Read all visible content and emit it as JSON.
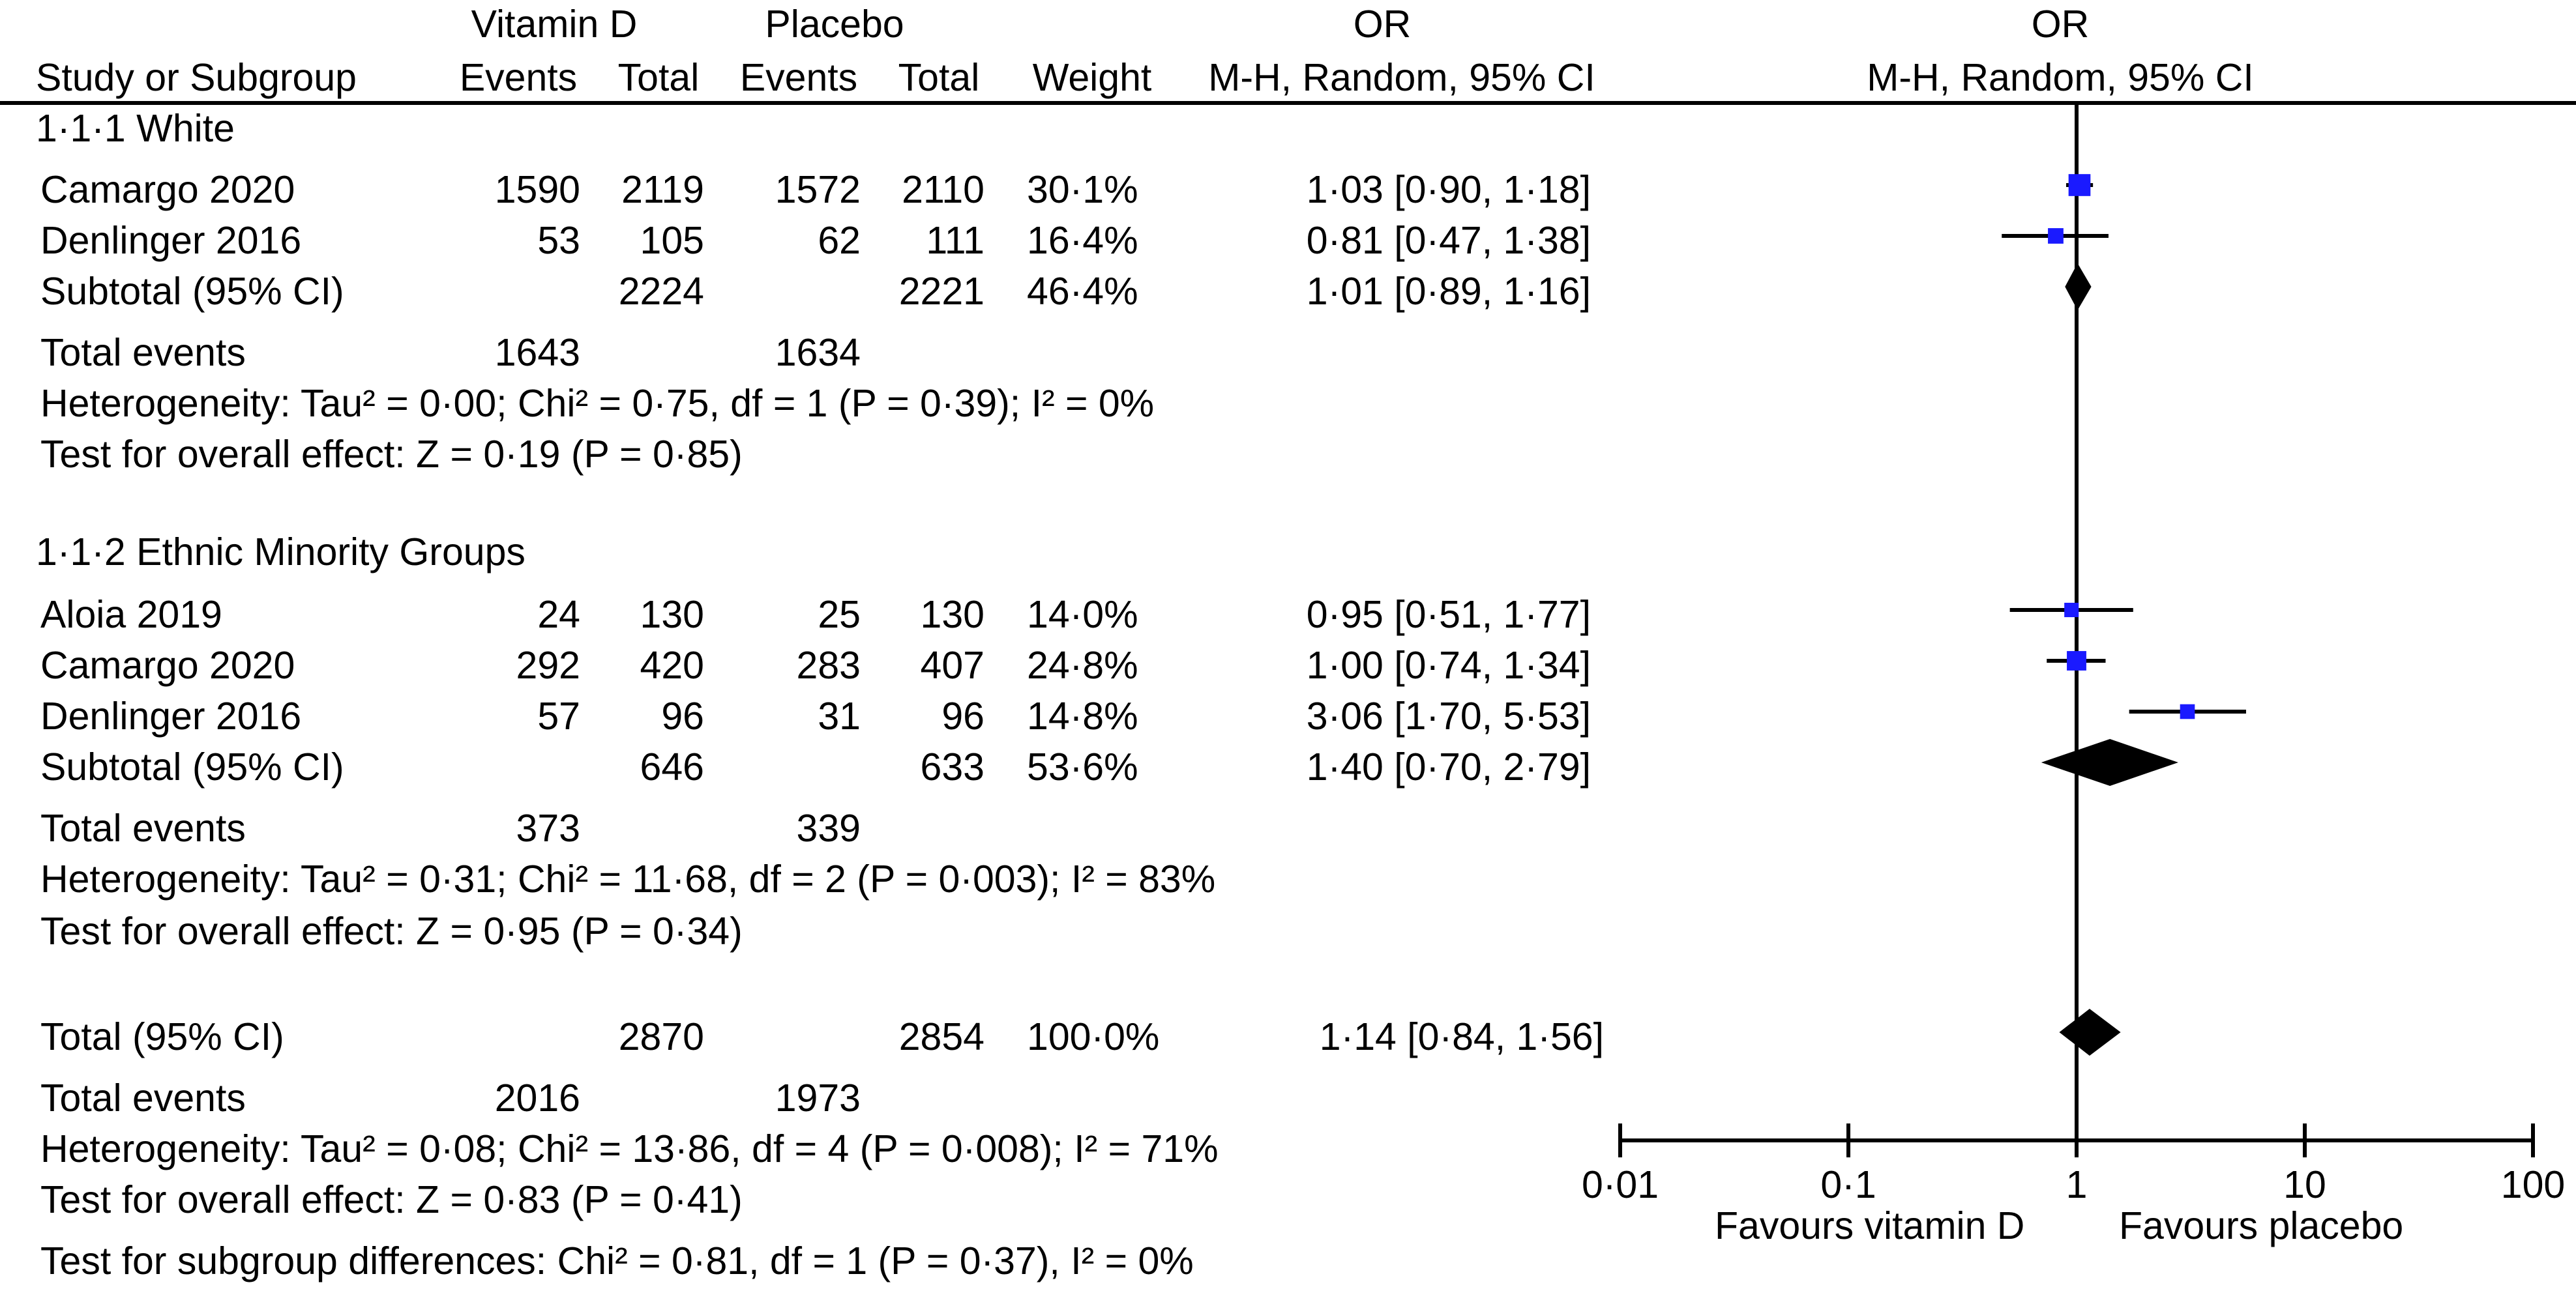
{
  "header": {
    "group1": "Vitamin D",
    "group2": "Placebo",
    "or_top": "OR",
    "or_plot_top": "OR",
    "study_col": "Study or Subgroup",
    "events1": "Events",
    "total1": "Total",
    "events2": "Events",
    "total2": "Total",
    "weight": "Weight",
    "or_method": "M-H, Random, 95% CI",
    "or_plot_method": "M-H, Random, 95% CI"
  },
  "subgroups": [
    {
      "title": "1·1·1 White",
      "studies": [
        {
          "name": "Camargo 2020",
          "events1": "1590",
          "total1": "2119",
          "events2": "1572",
          "total2": "2110",
          "weight": "30·1%",
          "or_text": "1·03 [0·90, 1·18]"
        },
        {
          "name": "Denlinger 2016",
          "events1": "53",
          "total1": "105",
          "events2": "62",
          "total2": "111",
          "weight": "16·4%",
          "or_text": "0·81 [0·47, 1·38]"
        }
      ],
      "subtotal": {
        "name": "Subtotal (95% CI)",
        "total1": "2224",
        "total2": "2221",
        "weight": "46·4%",
        "or_text": "1·01 [0·89, 1·16]"
      },
      "events": {
        "label": "Total events",
        "e1": "1643",
        "e2": "1634"
      },
      "heterogeneity": "Heterogeneity: Tau² = 0·00; Chi² = 0·75, df = 1 (P = 0·39); I² = 0%",
      "overall": "Test for overall effect: Z = 0·19 (P = 0·85)"
    },
    {
      "title": "1·1·2 Ethnic Minority Groups",
      "studies": [
        {
          "name": "Aloia 2019",
          "events1": "24",
          "total1": "130",
          "events2": "25",
          "total2": "130",
          "weight": "14·0%",
          "or_text": "0·95 [0·51, 1·77]"
        },
        {
          "name": "Camargo 2020",
          "events1": "292",
          "total1": "420",
          "events2": "283",
          "total2": "407",
          "weight": "24·8%",
          "or_text": "1·00 [0·74, 1·34]"
        },
        {
          "name": "Denlinger 2016",
          "events1": "57",
          "total1": "96",
          "events2": "31",
          "total2": "96",
          "weight": "14·8%",
          "or_text": "3·06 [1·70, 5·53]"
        }
      ],
      "subtotal": {
        "name": "Subtotal (95% CI)",
        "total1": "646",
        "total2": "633",
        "weight": "53·6%",
        "or_text": "1·40 [0·70, 2·79]"
      },
      "events": {
        "label": "Total events",
        "e1": "373",
        "e2": "339"
      },
      "heterogeneity": "Heterogeneity: Tau² = 0·31; Chi² = 11·68, df = 2 (P = 0·003); I² = 83%",
      "overall": "Test for overall effect: Z = 0·95 (P = 0·34)"
    }
  ],
  "total": {
    "name": "Total (95% CI)",
    "total1": "2870",
    "total2": "2854",
    "weight": "100·0%",
    "or_text": "1·14 [0·84, 1·56]"
  },
  "total_events": {
    "label": "Total events",
    "e1": "2016",
    "e2": "1973"
  },
  "total_heterogeneity": "Heterogeneity: Tau² = 0·08; Chi² = 13·86, df = 4 (P = 0·008); I² = 71%",
  "total_overall": "Test for overall effect: Z = 0·83 (P = 0·41)",
  "subgroup_diff": "Test for subgroup differences: Chi² = 0·81, df = 1 (P = 0·37), I² = 0%",
  "axis": {
    "ticks": [
      "0·01",
      "0·1",
      "1",
      "10",
      "100"
    ],
    "favours_left": "Favours vitamin D",
    "favours_right": "Favours placebo"
  },
  "chart_data": {
    "type": "scatter",
    "scale": "log",
    "xlim": [
      0.01,
      100
    ],
    "reference_line": 1,
    "marker_color": "#1a1aff",
    "points": [
      {
        "study": "Camargo 2020",
        "subgroup": "1·1·1 White",
        "or": 1.03,
        "lo": 0.9,
        "hi": 1.18,
        "weight": 30.1
      },
      {
        "study": "Denlinger 2016",
        "subgroup": "1·1·1 White",
        "or": 0.81,
        "lo": 0.47,
        "hi": 1.38,
        "weight": 16.4
      },
      {
        "study": "Aloia 2019",
        "subgroup": "1·1·2 Ethnic Minority Groups",
        "or": 0.95,
        "lo": 0.51,
        "hi": 1.77,
        "weight": 14.0
      },
      {
        "study": "Camargo 2020",
        "subgroup": "1·1·2 Ethnic Minority Groups",
        "or": 1.0,
        "lo": 0.74,
        "hi": 1.34,
        "weight": 24.8
      },
      {
        "study": "Denlinger 2016",
        "subgroup": "1·1·2 Ethnic Minority Groups",
        "or": 3.06,
        "lo": 1.7,
        "hi": 5.53,
        "weight": 14.8
      }
    ],
    "diamonds": [
      {
        "label": "Subtotal (95% CI)",
        "subgroup": "1·1·1 White",
        "or": 1.01,
        "lo": 0.89,
        "hi": 1.16
      },
      {
        "label": "Subtotal (95% CI)",
        "subgroup": "1·1·2 Ethnic Minority Groups",
        "or": 1.4,
        "lo": 0.7,
        "hi": 2.79
      },
      {
        "label": "Total (95% CI)",
        "subgroup": "overall",
        "or": 1.14,
        "lo": 0.84,
        "hi": 1.56
      }
    ]
  }
}
